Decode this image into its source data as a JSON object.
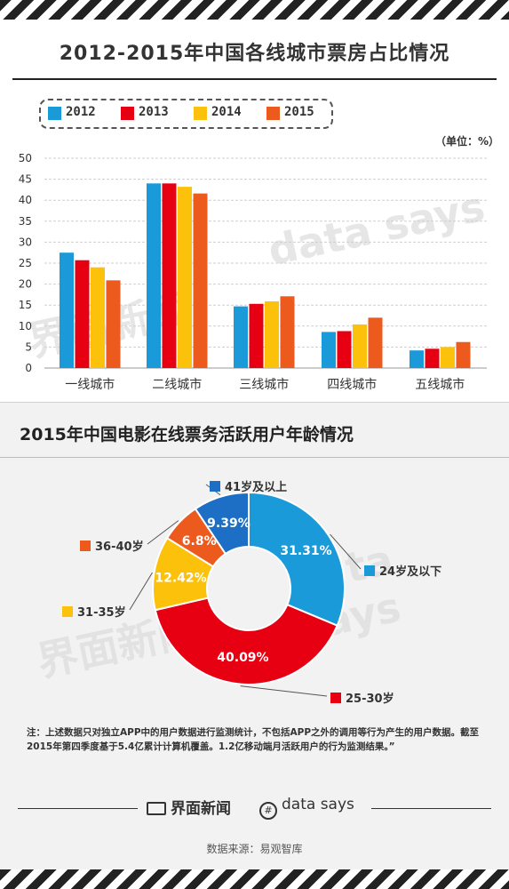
{
  "title": "2012-2015年中国各线城市票房占比情况",
  "unit": "（单位：%）",
  "legend": [
    {
      "label": "2012",
      "color": "#1a9ad9"
    },
    {
      "label": "2013",
      "color": "#e60012"
    },
    {
      "label": "2014",
      "color": "#fcc20b"
    },
    {
      "label": "2015",
      "color": "#ec5a1e"
    }
  ],
  "chart2_title": "2015年中国电影在线票务活跃用户年龄情况",
  "note": "注：上述数据只对独立APP中的用户数据进行监测统计，不包括APP之外的调用等行为产生的用户数据。截至2015年第四季度基于5.4亿累计计算机覆盖。1.2亿移动端月活跃用户的行为监测结果。”",
  "footer": {
    "brand1": "界面新闻",
    "brand2": "data says",
    "source": "数据来源：易观智库"
  },
  "watermark": {
    "text1": "data says",
    "text2": "界面新闻"
  },
  "chart_data": [
    {
      "type": "bar",
      "categories": [
        "一线城市",
        "二线城市",
        "三线城市",
        "四线城市",
        "五线城市"
      ],
      "series": [
        {
          "name": "2012",
          "values": [
            27.5,
            44,
            14.7,
            8.6,
            4.2
          ]
        },
        {
          "name": "2013",
          "values": [
            25.7,
            44,
            15.3,
            8.8,
            4.6
          ]
        },
        {
          "name": "2014",
          "values": [
            24,
            43.2,
            15.9,
            10.4,
            5
          ]
        },
        {
          "name": "2015",
          "values": [
            20.9,
            41.6,
            17.1,
            12,
            6.2
          ]
        }
      ],
      "yticks": [
        0,
        5,
        10,
        15,
        20,
        25,
        30,
        35,
        40,
        45,
        50
      ],
      "ylim": [
        0,
        50
      ],
      "grid": true,
      "legend_position": "top-left"
    },
    {
      "type": "pie",
      "variant": "donut",
      "slices": [
        {
          "label": "24岁及以下",
          "value": 31.31,
          "value_label": "31.31%",
          "color": "#1a9ad9"
        },
        {
          "label": "25-30岁",
          "value": 40.09,
          "value_label": "40.09%",
          "color": "#e60012"
        },
        {
          "label": "31-35岁",
          "value": 12.42,
          "value_label": "12.42%",
          "color": "#fcc20b"
        },
        {
          "label": "36-40岁",
          "value": 6.8,
          "value_label": "6.8%",
          "color": "#ec5a1e"
        },
        {
          "label": "41岁及以上",
          "value": 9.39,
          "value_label": "9.39%",
          "color": "#1c6fc4"
        }
      ]
    }
  ]
}
